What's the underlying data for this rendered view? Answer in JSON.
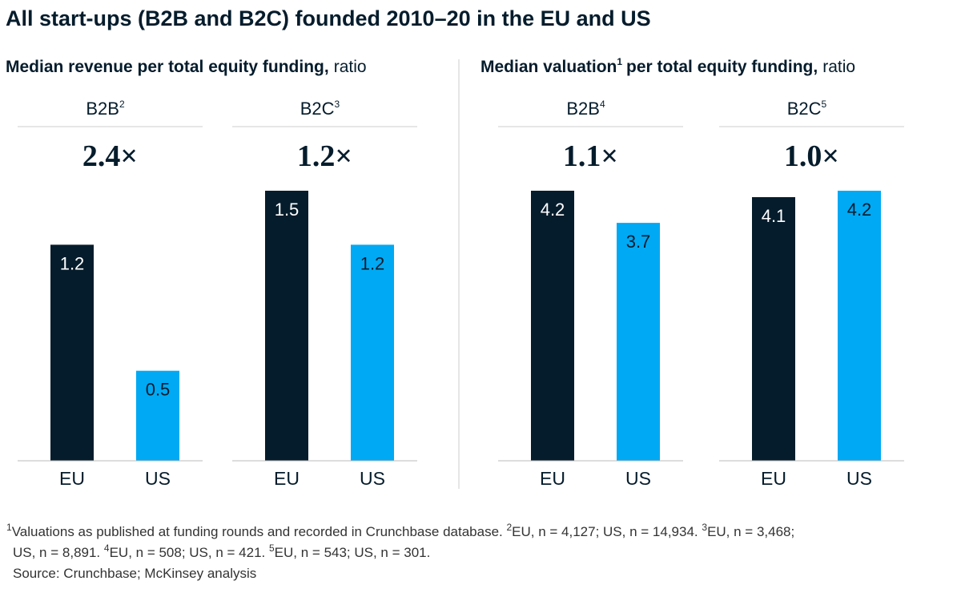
{
  "title": "All start-ups (B2B and B2C) founded 2010–20 in the EU and US",
  "panels": [
    {
      "title": "Median revenue per total equity funding,",
      "unit": "ratio"
    },
    {
      "title": "Median valuation",
      "title_sup": "1",
      "title_rest": "per total equity funding,",
      "unit": "ratio"
    }
  ],
  "chart_data": [
    {
      "type": "bar",
      "title": "B2B",
      "title_sup": "2",
      "headline": {
        "value": 2.4,
        "label": "2.4×"
      },
      "categories": [
        "EU",
        "US"
      ],
      "values": [
        1.2,
        0.5
      ],
      "colors": [
        "#051c2c",
        "#00a9f4"
      ],
      "ylim": [
        0,
        1.5
      ]
    },
    {
      "type": "bar",
      "title": "B2C",
      "title_sup": "3",
      "headline": {
        "value": 1.2,
        "label": "1.2×"
      },
      "categories": [
        "EU",
        "US"
      ],
      "values": [
        1.5,
        1.2
      ],
      "colors": [
        "#051c2c",
        "#00a9f4"
      ],
      "ylim": [
        0,
        1.5
      ]
    },
    {
      "type": "bar",
      "title": "B2B",
      "title_sup": "4",
      "headline": {
        "value": 1.1,
        "label": "1.1×"
      },
      "categories": [
        "EU",
        "US"
      ],
      "values": [
        4.2,
        3.7
      ],
      "colors": [
        "#051c2c",
        "#00a9f4"
      ],
      "ylim": [
        0,
        4.2
      ]
    },
    {
      "type": "bar",
      "title": "B2C",
      "title_sup": "5",
      "headline": {
        "value": 1.0,
        "label": "1.0×"
      },
      "categories": [
        "EU",
        "US"
      ],
      "values": [
        4.1,
        4.2
      ],
      "colors": [
        "#051c2c",
        "#00a9f4"
      ],
      "ylim": [
        0,
        4.2
      ]
    }
  ],
  "footnotes": [
    [
      {
        "sup": "1"
      },
      {
        "text": "Valuations as published at funding rounds and recorded in Crunchbase database. "
      },
      {
        "sup": "2"
      },
      {
        "text": "EU, n = 4,127; US, n = 14,934. "
      },
      {
        "sup": "3"
      },
      {
        "text": "EU, n = 3,468;"
      }
    ],
    [
      {
        "text": "US, n = 8,891. "
      },
      {
        "sup": "4"
      },
      {
        "text": "EU, n = 508; US, n = 421. "
      },
      {
        "sup": "5"
      },
      {
        "text": "EU, n = 543; US, n = 301."
      }
    ],
    [
      {
        "text": "Source: Crunchbase; McKinsey analysis"
      }
    ]
  ]
}
